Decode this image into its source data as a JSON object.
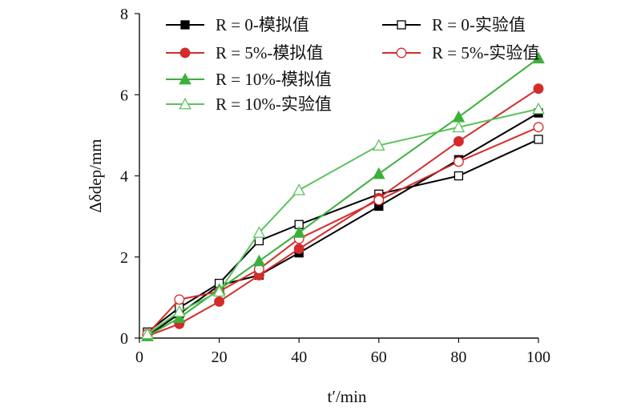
{
  "chart_data": {
    "type": "line",
    "xlabel": "t′/min",
    "ylabel": "Δδdep/mm",
    "xlim": [
      0,
      100
    ],
    "ylim": [
      0,
      8
    ],
    "xticks": [
      0,
      20,
      40,
      60,
      80,
      100
    ],
    "yticks": [
      0,
      2,
      4,
      6,
      8
    ],
    "grid": false,
    "legend_position": "top-left",
    "x": [
      2,
      10,
      20,
      30,
      40,
      60,
      80,
      100
    ],
    "series": [
      {
        "name": "R = 0-模拟值",
        "color": "#000000",
        "marker": "square",
        "filled": true,
        "values": [
          0.05,
          0.6,
          1.3,
          1.55,
          2.1,
          3.25,
          4.4,
          5.55
        ]
      },
      {
        "name": "R = 0-实验值",
        "color": "#000000",
        "marker": "square",
        "filled": false,
        "values": [
          0.15,
          0.75,
          1.35,
          2.4,
          2.8,
          3.55,
          4.0,
          4.9
        ]
      },
      {
        "name": "R = 5%-模拟值",
        "color": "#d42b2b",
        "marker": "circle",
        "filled": true,
        "values": [
          0.05,
          0.35,
          0.9,
          1.55,
          2.2,
          3.45,
          4.85,
          6.15
        ]
      },
      {
        "name": "R = 5%-实验值",
        "color": "#d42b2b",
        "marker": "circle",
        "filled": false,
        "values": [
          0.1,
          0.95,
          1.15,
          1.7,
          2.45,
          3.4,
          4.35,
          5.2
        ]
      },
      {
        "name": "R = 10%-模拟值",
        "color": "#3bb03b",
        "marker": "triangle",
        "filled": true,
        "values": [
          0.05,
          0.5,
          1.2,
          1.9,
          2.6,
          4.05,
          5.45,
          6.9
        ]
      },
      {
        "name": "R = 10%-实验值",
        "color": "#5cc25c",
        "marker": "triangle",
        "filled": false,
        "values": [
          0.1,
          0.65,
          1.15,
          2.6,
          3.65,
          4.75,
          5.2,
          5.65
        ]
      }
    ]
  }
}
